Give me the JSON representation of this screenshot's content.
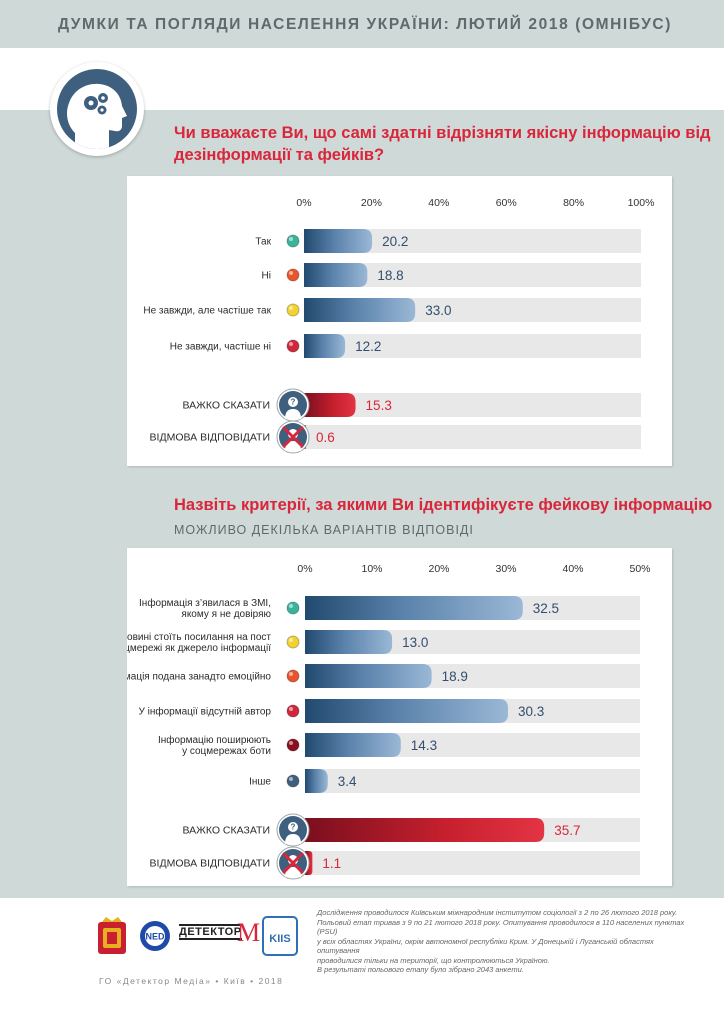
{
  "header": {
    "title": "ДУМКИ ТА ПОГЛЯДИ НАСЕЛЕННЯ УКРАЇНИ: ЛЮТИЙ 2018 (ОМНІБУС)"
  },
  "colors": {
    "band": "#cfd9d8",
    "accent_red": "#d9263a",
    "bar_blue": "#5a82ab",
    "bar_red": "#c8202e"
  },
  "chart_data": [
    {
      "type": "bar",
      "title": "Чи вважаєте Ви, що самі здатні відрізняти якісну інформацію від дезінформації та фейків?",
      "xlim": [
        0,
        100
      ],
      "ticks": [
        "0%",
        "20%",
        "40%",
        "60%",
        "80%",
        "100%"
      ],
      "categories": [
        "Так",
        "Ні",
        "Не завжди, але частіше так",
        "Не завжди, частіше ні",
        "ВАЖКО СКАЗАТИ",
        "ВІДМОВА ВІДПОВІДАТИ"
      ],
      "values": [
        20.2,
        18.8,
        33.0,
        12.2,
        15.3,
        0.6
      ],
      "labels": [
        "20.2",
        "18.8",
        "33.0",
        "12.2",
        "15.3",
        "0.6"
      ],
      "dot_colors": [
        "#3bb39a",
        "#e8552c",
        "#f2d22e",
        "#d0283a",
        null,
        null
      ]
    },
    {
      "type": "bar",
      "title": "Назвіть критерії, за якими Ви ідентифікуєте фейкову інформацію",
      "subtitle": "МОЖЛИВО ДЕКІЛЬКА ВАРІАНТІВ ВІДПОВІДІ",
      "xlim": [
        0,
        50
      ],
      "ticks": [
        "0%",
        "10%",
        "20%",
        "30%",
        "40%",
        "50%"
      ],
      "categories": [
        "Інформація з’явилася в ЗМІ, якому я не довіряю",
        "У новині стоїть посилання на пост у соцмережі як джерело інформації",
        "Інформація подана занадто емоційно",
        "У інформації відсутній автор",
        "Інформацію поширюють у соцмережах боти",
        "Інше",
        "ВАЖКО СКАЗАТИ",
        "ВІДМОВА ВІДПОВІДАТИ"
      ],
      "category_lines": [
        [
          "Інформація з’явилася в ЗМІ,",
          "якому я не довіряю"
        ],
        [
          "У новині стоїть посилання на пост",
          "у соцмережі як джерело інформації"
        ],
        [
          "Інформація подана занадто емоційно"
        ],
        [
          "У інформації відсутній автор"
        ],
        [
          "Інформацію поширюють",
          "у соцмережах боти"
        ],
        [
          "Інше"
        ],
        [
          "ВАЖКО СКАЗАТИ"
        ],
        [
          "ВІДМОВА ВІДПОВІДАТИ"
        ]
      ],
      "values": [
        32.5,
        13.0,
        18.9,
        30.3,
        14.3,
        3.4,
        35.7,
        1.1
      ],
      "labels": [
        "32.5",
        "13.0",
        "18.9",
        "30.3",
        "14.3",
        "3.4",
        "35.7",
        "1.1"
      ],
      "dot_colors": [
        "#3bb39a",
        "#f2d22e",
        "#e8552c",
        "#d0283a",
        "#8a1020",
        "#3f5f7f",
        null,
        null
      ]
    }
  ],
  "footer": {
    "note_lines": [
      "Дослідження проводилося Київським міжнародним інститутом соціології з 2 по 26 лютого 2018 року.",
      "Польовий етап тривав з 9 по 21 лютого 2018 року. Опитування проводилося в 110 населених пунктах (PSU)",
      "у всіх областях України, окрім автономної республіки Крим. У Донецькій і Луганській областях опитування",
      "проводилися тільки на території, що контролюються Україною.",
      "В результаті польового етапу було зібрано 2043 анкети."
    ],
    "bottom_line": "ГО «Детектор Медіа» • Київ • 2018",
    "logos": {
      "ned": "NED",
      "detector": "ДЕТЕКТОР",
      "detector_m": "M",
      "kiis": "KIIS"
    }
  }
}
